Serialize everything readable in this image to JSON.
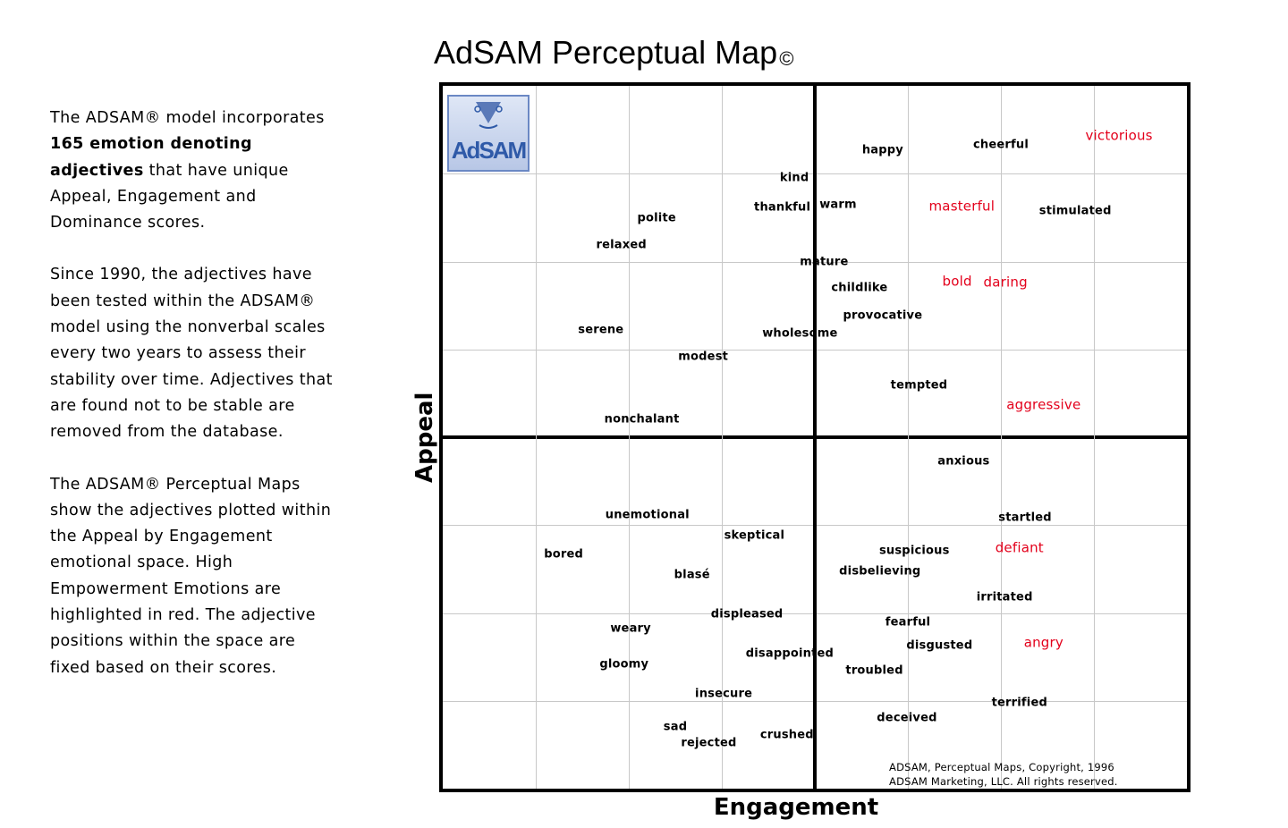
{
  "description": {
    "p1_a": "The ADSAM® model incorporates ",
    "p1_bold": "165 emotion denoting adjectives",
    "p1_b": " that have unique Appeal, Engagement and Dominance scores.",
    "p2": "Since 1990, the adjectives have been tested within the ADSAM® model using the nonverbal scales every two years to assess their stability over time. Adjectives that are found not to be stable are removed from the database.",
    "p3": "The ADSAM® Perceptual Maps show the adjectives plotted within the Appeal by Engagement emotional space. High Empowerment Emotions are highlighted in red.  The adjective positions within the space are fixed based on their scores."
  },
  "logo": {
    "text": "AdSAM"
  },
  "copyright": {
    "line1": "ADSAM, Perceptual Maps, Copyright, 1996",
    "line2": "ADSAM Marketing, LLC.  All rights reserved."
  },
  "colors": {
    "highlight": "#e3001b",
    "normal": "#000000",
    "grid": "#c8c8c8"
  },
  "chart_data": {
    "type": "scatter",
    "title": "AdSAM Perceptual Map",
    "title_mark": "©",
    "xlabel": "Engagement",
    "ylabel": "Appeal",
    "xlim": [
      -4,
      4
    ],
    "ylim": [
      -4,
      4
    ],
    "grid": true,
    "legend": "none",
    "points": [
      {
        "label": "happy",
        "x": 0.73,
        "y": 3.27,
        "high": false
      },
      {
        "label": "cheerful",
        "x": 2.0,
        "y": 3.33,
        "high": false
      },
      {
        "label": "victorious",
        "x": 3.27,
        "y": 3.43,
        "high": true
      },
      {
        "label": "kind",
        "x": -0.22,
        "y": 2.95,
        "high": false
      },
      {
        "label": "thankful",
        "x": -0.35,
        "y": 2.62,
        "high": false
      },
      {
        "label": "warm",
        "x": 0.25,
        "y": 2.65,
        "high": false
      },
      {
        "label": "masterful",
        "x": 1.58,
        "y": 2.63,
        "high": true
      },
      {
        "label": "stimulated",
        "x": 2.8,
        "y": 2.57,
        "high": false
      },
      {
        "label": "polite",
        "x": -1.7,
        "y": 2.49,
        "high": false
      },
      {
        "label": "relaxed",
        "x": -2.08,
        "y": 2.19,
        "high": false
      },
      {
        "label": "mature",
        "x": 0.1,
        "y": 2.0,
        "high": false
      },
      {
        "label": "childlike",
        "x": 0.48,
        "y": 1.7,
        "high": false
      },
      {
        "label": "bold",
        "x": 1.53,
        "y": 1.77,
        "high": true
      },
      {
        "label": "daring",
        "x": 2.05,
        "y": 1.76,
        "high": true
      },
      {
        "label": "provocative",
        "x": 0.73,
        "y": 1.38,
        "high": false
      },
      {
        "label": "serene",
        "x": -2.3,
        "y": 1.22,
        "high": false
      },
      {
        "label": "wholesome",
        "x": -0.16,
        "y": 1.18,
        "high": false
      },
      {
        "label": "modest",
        "x": -1.2,
        "y": 0.92,
        "high": false
      },
      {
        "label": "tempted",
        "x": 1.12,
        "y": 0.59,
        "high": false
      },
      {
        "label": "aggressive",
        "x": 2.46,
        "y": 0.37,
        "high": true
      },
      {
        "label": "nonchalant",
        "x": -1.86,
        "y": 0.2,
        "high": false
      },
      {
        "label": "anxious",
        "x": 1.6,
        "y": -0.27,
        "high": false
      },
      {
        "label": "unemotional",
        "x": -1.8,
        "y": -0.89,
        "high": false
      },
      {
        "label": "startled",
        "x": 2.26,
        "y": -0.92,
        "high": false
      },
      {
        "label": "skeptical",
        "x": -0.65,
        "y": -1.12,
        "high": false
      },
      {
        "label": "defiant",
        "x": 2.2,
        "y": -1.26,
        "high": true
      },
      {
        "label": "bored",
        "x": -2.7,
        "y": -1.33,
        "high": false
      },
      {
        "label": "suspicious",
        "x": 1.07,
        "y": -1.29,
        "high": false
      },
      {
        "label": "disbelieving",
        "x": 0.7,
        "y": -1.53,
        "high": false
      },
      {
        "label": "blasé",
        "x": -1.32,
        "y": -1.57,
        "high": false
      },
      {
        "label": "irritated",
        "x": 2.04,
        "y": -1.82,
        "high": false
      },
      {
        "label": "displeased",
        "x": -0.73,
        "y": -2.02,
        "high": false
      },
      {
        "label": "fearful",
        "x": 1.0,
        "y": -2.11,
        "high": false
      },
      {
        "label": "weary",
        "x": -1.98,
        "y": -2.18,
        "high": false
      },
      {
        "label": "disgusted",
        "x": 1.34,
        "y": -2.37,
        "high": false
      },
      {
        "label": "angry",
        "x": 2.46,
        "y": -2.34,
        "high": true
      },
      {
        "label": "disappointed",
        "x": -0.27,
        "y": -2.46,
        "high": false
      },
      {
        "label": "gloomy",
        "x": -2.05,
        "y": -2.59,
        "high": false
      },
      {
        "label": "troubled",
        "x": 0.64,
        "y": -2.66,
        "high": false
      },
      {
        "label": "insecure",
        "x": -0.98,
        "y": -2.92,
        "high": false
      },
      {
        "label": "terrified",
        "x": 2.2,
        "y": -3.02,
        "high": false
      },
      {
        "label": "deceived",
        "x": 0.99,
        "y": -3.2,
        "high": false
      },
      {
        "label": "sad",
        "x": -1.5,
        "y": -3.3,
        "high": false
      },
      {
        "label": "crushed",
        "x": -0.3,
        "y": -3.39,
        "high": false
      },
      {
        "label": "rejected",
        "x": -1.14,
        "y": -3.48,
        "high": false
      }
    ]
  }
}
